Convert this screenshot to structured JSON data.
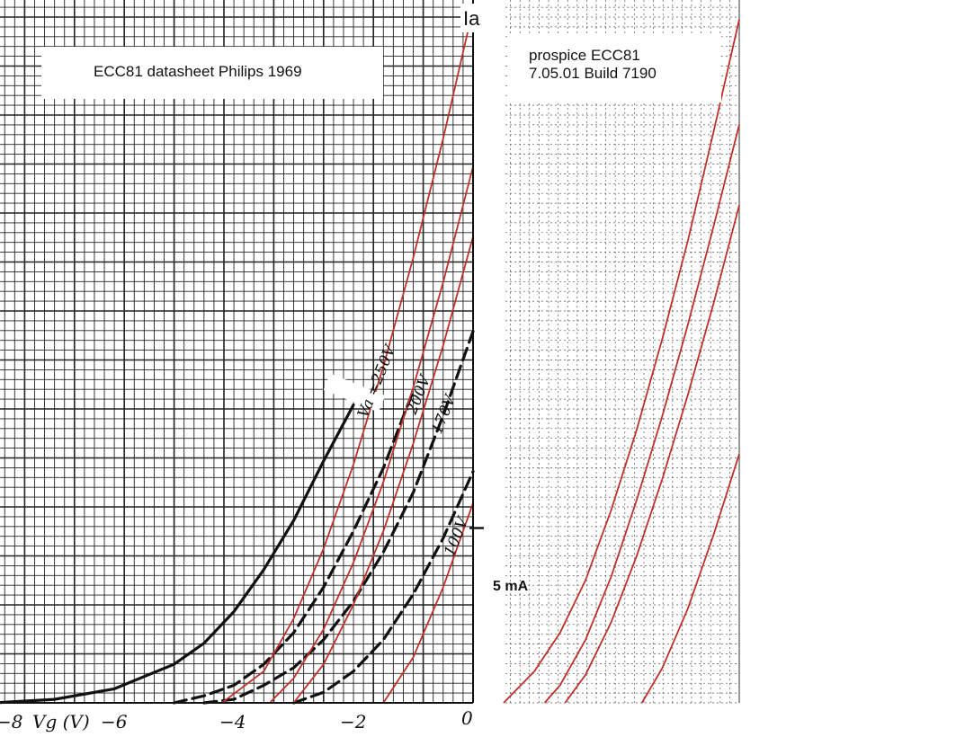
{
  "left_panel": {
    "title": "ECC81 datasheet Philips 1969",
    "x_axis_label": "Vg (V)",
    "x_ticks": [
      "−8",
      "−6",
      "−4",
      "−2",
      "0"
    ],
    "curve_labels": [
      "Va =250V",
      "200V",
      "170V",
      "100V"
    ],
    "y_axis_label": "Ia",
    "y_marker_label": "5 mA"
  },
  "right_panel": {
    "title_line1": "prospice ECC81",
    "title_line2": "7.05.01 Build 7190"
  },
  "colors": {
    "datasheet_curve": "#111111",
    "simulated_curve": "#c0302a",
    "grid": "#222222",
    "right_grid": "#555555"
  },
  "chart_data": [
    {
      "type": "line",
      "title": "ECC81 datasheet Philips 1969",
      "xlabel": "Vg (V)",
      "ylabel": "Ia",
      "xlim": [
        -8,
        0
      ],
      "ylim": [
        0,
        20
      ],
      "y_marker": 5,
      "grid": true,
      "series": [
        {
          "name": "Va =250V",
          "x": [
            -8,
            -7,
            -6,
            -5,
            -4.5,
            -4,
            -3.5,
            -3,
            -2.5,
            -2
          ],
          "values": [
            0,
            0.1,
            0.4,
            1.1,
            1.7,
            2.6,
            3.8,
            5.2,
            6.9,
            8.5
          ]
        },
        {
          "name": "200V",
          "x": [
            -5,
            -4.5,
            -4,
            -3.5,
            -3,
            -2.5,
            -2,
            -1.5,
            -1
          ],
          "values": [
            0,
            0.2,
            0.5,
            1.1,
            2.0,
            3.3,
            4.9,
            6.7,
            8.9
          ]
        },
        {
          "name": "170V",
          "x": [
            -4.5,
            -4,
            -3.5,
            -3,
            -2.5,
            -2,
            -1.5,
            -1,
            -0.5,
            0
          ],
          "values": [
            0,
            0.1,
            0.5,
            1.0,
            1.8,
            2.9,
            4.3,
            6.0,
            8.2,
            10.6
          ]
        },
        {
          "name": "100V",
          "x": [
            -3,
            -2.5,
            -2,
            -1.5,
            -1,
            -0.5,
            0
          ],
          "values": [
            0,
            0.3,
            0.9,
            1.8,
            3.1,
            4.7,
            6.6
          ]
        },
        {
          "x": [
            -4.2,
            -3.5,
            -3,
            -2.5,
            -2,
            -1.5,
            -1,
            -0.5,
            0
          ],
          "values": [
            0,
            0.9,
            2.4,
            4.4,
            6.8,
            9.6,
            12.7,
            16.1,
            19.8
          ]
        },
        {
          "x": [
            -3.4,
            -3,
            -2.5,
            -2,
            -1.5,
            -1,
            -0.5,
            0
          ],
          "values": [
            0,
            0.7,
            2.1,
            4.0,
            6.3,
            9.0,
            12.0,
            15.3
          ]
        },
        {
          "x": [
            -3.0,
            -2.5,
            -2,
            -1.5,
            -1,
            -0.5,
            0
          ],
          "values": [
            0,
            1.1,
            2.8,
            4.9,
            7.4,
            10.2,
            13.3
          ]
        },
        {
          "x": [
            -1.5,
            -1,
            -0.5,
            0
          ],
          "values": [
            0,
            1.3,
            3.3,
            5.7
          ]
        }
      ]
    },
    {
      "type": "line",
      "title": "prospice ECC81 7.05.01 Build 7190",
      "xlim": [
        -4.6,
        0
      ],
      "ylim": [
        0,
        20
      ],
      "grid": true,
      "series": [
        {
          "x": [
            -4.6,
            -4,
            -3.5,
            -3,
            -2.5,
            -2,
            -1.5,
            -1,
            -0.5,
            0
          ],
          "values": [
            0,
            0.9,
            2.0,
            3.5,
            5.5,
            7.8,
            10.4,
            13.2,
            16.3,
            19.5
          ]
        },
        {
          "x": [
            -3.8,
            -3.5,
            -3,
            -2.5,
            -2,
            -1.5,
            -1,
            -0.5,
            0
          ],
          "values": [
            0,
            0.5,
            1.8,
            3.6,
            5.8,
            8.2,
            10.8,
            13.6,
            16.5
          ]
        },
        {
          "x": [
            -3.4,
            -3,
            -2.5,
            -2,
            -1.5,
            -1,
            -0.5,
            0
          ],
          "values": [
            0,
            0.8,
            2.3,
            4.2,
            6.4,
            8.8,
            11.4,
            14.2
          ]
        },
        {
          "x": [
            -1.9,
            -1.5,
            -1,
            -0.5,
            0
          ],
          "values": [
            0,
            1.0,
            2.7,
            4.8,
            7.1
          ]
        }
      ]
    }
  ]
}
